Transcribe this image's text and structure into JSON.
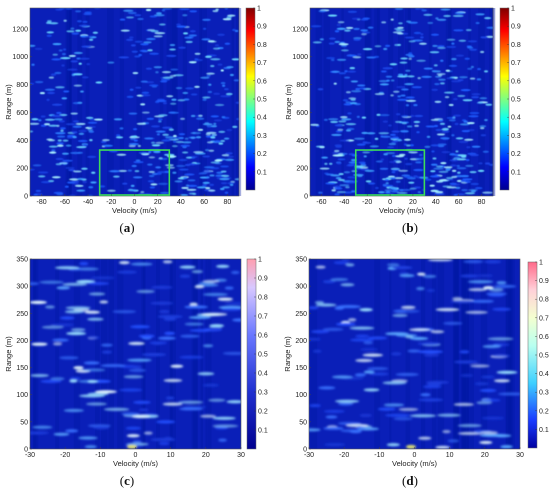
{
  "chart_data": [
    {
      "type": "heatmap",
      "caption": "(a)",
      "xlabel": "Velocity (m/s)",
      "ylabel": "Range (m)",
      "xlim": [
        -90,
        90
      ],
      "ylim": [
        0,
        1350
      ],
      "xticks": [
        -80,
        -60,
        -40,
        -20,
        0,
        20,
        40,
        60,
        80
      ],
      "yticks": [
        0,
        200,
        400,
        600,
        800,
        1000,
        1200
      ],
      "colorbar_ticks": [
        0.1,
        0.2,
        0.3,
        0.4,
        0.5,
        0.6,
        0.7,
        0.8,
        0.9,
        1
      ],
      "colorbar_range": [
        0,
        1
      ],
      "highlight_box": {
        "x": [
          -30,
          30
        ],
        "y": [
          0,
          330
        ],
        "color": "#3ddc5a"
      },
      "cluster_center_velocities": [
        -55,
        15,
        60
      ],
      "seed": 11
    },
    {
      "type": "heatmap",
      "caption": "(b)",
      "xlabel": "Velocity (m/s)",
      "ylabel": "Range (m)",
      "xlim": [
        -70,
        90
      ],
      "ylim": [
        0,
        1350
      ],
      "xticks": [
        -60,
        -40,
        -20,
        0,
        20,
        40,
        60,
        80
      ],
      "yticks": [
        0,
        200,
        400,
        600,
        800,
        1000,
        1200
      ],
      "colorbar_ticks": [
        0.1,
        0.2,
        0.3,
        0.4,
        0.5,
        0.6,
        0.7,
        0.8,
        0.9,
        1
      ],
      "colorbar_range": [
        0,
        1
      ],
      "highlight_box": {
        "x": [
          -30,
          30
        ],
        "y": [
          0,
          330
        ],
        "color": "#3ddc5a"
      },
      "cluster_center_velocities": [
        -35,
        10,
        55
      ],
      "seed": 23
    },
    {
      "type": "heatmap",
      "caption": "(c)",
      "xlabel": "Velocity (m/s)",
      "ylabel": "Range (m)",
      "xlim": [
        -30,
        30
      ],
      "ylim": [
        0,
        350
      ],
      "xticks": [
        -30,
        -20,
        -10,
        0,
        10,
        20,
        30
      ],
      "yticks": [
        0,
        50,
        100,
        150,
        200,
        250,
        300,
        350
      ],
      "colorbar_ticks": [
        0.1,
        0.2,
        0.3,
        0.4,
        0.5,
        0.6,
        0.7,
        0.8,
        0.9,
        1
      ],
      "colorbar_range": [
        0,
        1
      ],
      "cluster_center_velocities": [
        -15,
        5,
        22
      ],
      "seed": 37
    },
    {
      "type": "heatmap",
      "caption": "(d)",
      "xlabel": "Velocity (m/s)",
      "ylabel": "Range (m)",
      "xlim": [
        -30,
        30
      ],
      "ylim": [
        0,
        350
      ],
      "xticks": [
        -30,
        -20,
        -10,
        0,
        10,
        20,
        30
      ],
      "yticks": [
        0,
        50,
        100,
        150,
        200,
        250,
        300,
        350
      ],
      "colorbar_ticks": [
        0.1,
        0.2,
        0.3,
        0.4,
        0.5,
        0.6,
        0.7,
        0.8,
        0.9,
        1
      ],
      "colorbar_range": [
        0,
        1
      ],
      "cluster_center_velocities": [
        -18,
        0,
        20
      ],
      "seed": 53
    }
  ]
}
